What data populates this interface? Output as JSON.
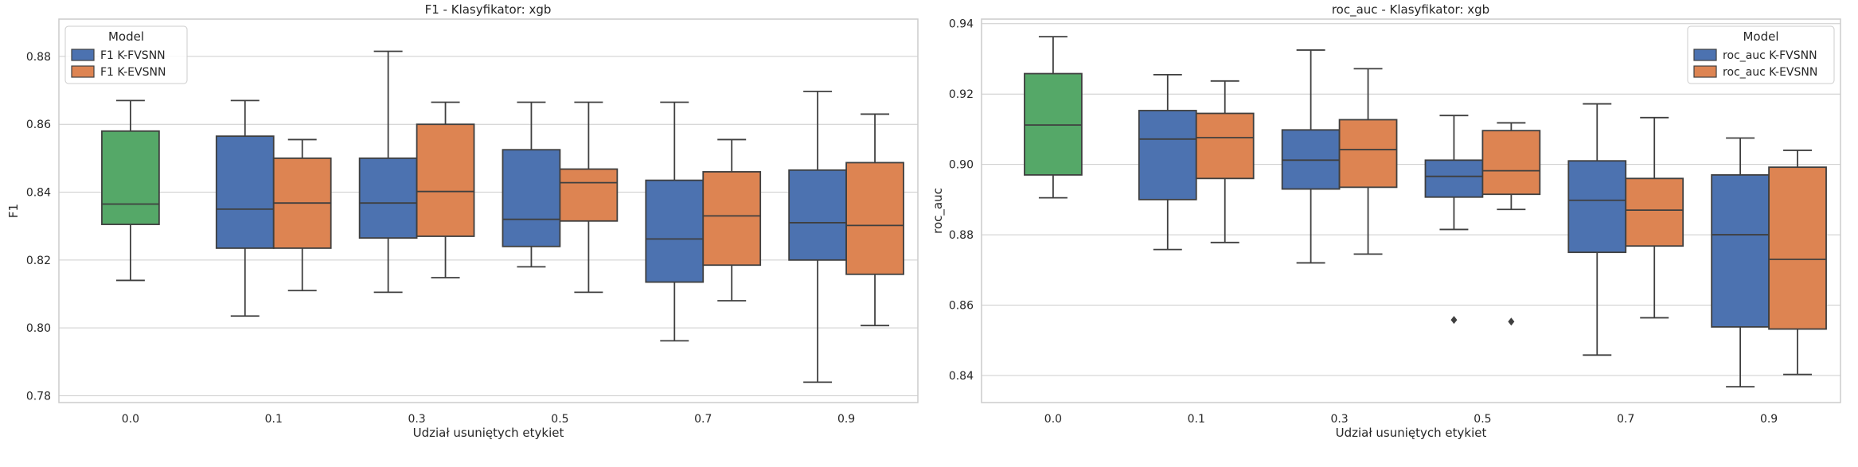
{
  "colors": {
    "baseline": "#55A868",
    "k_fvsnn": "#4C72B0",
    "k_evsnn": "#DD8452",
    "grid": "#CCCCCC",
    "line": "#3F3F3F",
    "frame": "#CCCCCC"
  },
  "chart_data": [
    {
      "type": "box",
      "title": "F1 - Klasyfikator: xgb",
      "xlabel": "Udział usuniętych etykiet",
      "ylabel": "F1",
      "ylim": [
        0.778,
        0.891
      ],
      "yticks": [
        "0.78",
        "0.80",
        "0.82",
        "0.84",
        "0.86",
        "0.88"
      ],
      "categories": [
        "0.0",
        "0.1",
        "0.3",
        "0.5",
        "0.7",
        "0.9"
      ],
      "grid": true,
      "legend": {
        "title": "Model",
        "placement": "top-left",
        "entries": [
          "F1 K-FVSNN",
          "F1 K-EVSNN"
        ]
      },
      "series": [
        {
          "name": "",
          "boxes": [
            {
              "category": "0.0",
              "whisker_low": 0.814,
              "q1": 0.8305,
              "median": 0.8365,
              "q3": 0.858,
              "whisker_high": 0.867
            }
          ]
        },
        {
          "name": "F1 K-FVSNN",
          "boxes": [
            {
              "category": "0.1",
              "whisker_low": 0.8035,
              "q1": 0.8235,
              "median": 0.835,
              "q3": 0.8565,
              "whisker_high": 0.867
            },
            {
              "category": "0.3",
              "whisker_low": 0.8105,
              "q1": 0.8265,
              "median": 0.8368,
              "q3": 0.85,
              "whisker_high": 0.8815
            },
            {
              "category": "0.5",
              "whisker_low": 0.818,
              "q1": 0.824,
              "median": 0.832,
              "q3": 0.8525,
              "whisker_high": 0.8665
            },
            {
              "category": "0.7",
              "whisker_low": 0.7962,
              "q1": 0.8135,
              "median": 0.8262,
              "q3": 0.8435,
              "whisker_high": 0.8665
            },
            {
              "category": "0.9",
              "whisker_low": 0.784,
              "q1": 0.82,
              "median": 0.831,
              "q3": 0.8465,
              "whisker_high": 0.8697
            }
          ]
        },
        {
          "name": "F1 K-EVSNN",
          "boxes": [
            {
              "category": "0.1",
              "whisker_low": 0.811,
              "q1": 0.8235,
              "median": 0.8368,
              "q3": 0.85,
              "whisker_high": 0.8555
            },
            {
              "category": "0.3",
              "whisker_low": 0.8148,
              "q1": 0.827,
              "median": 0.8402,
              "q3": 0.86,
              "whisker_high": 0.8665
            },
            {
              "category": "0.5",
              "whisker_low": 0.8105,
              "q1": 0.8315,
              "median": 0.8428,
              "q3": 0.8468,
              "whisker_high": 0.8665
            },
            {
              "category": "0.7",
              "whisker_low": 0.808,
              "q1": 0.8185,
              "median": 0.833,
              "q3": 0.846,
              "whisker_high": 0.8555
            },
            {
              "category": "0.9",
              "whisker_low": 0.8007,
              "q1": 0.8158,
              "median": 0.8302,
              "q3": 0.8487,
              "whisker_high": 0.863
            }
          ]
        }
      ]
    },
    {
      "type": "box",
      "title": "roc_auc - Klasyfikator: xgb",
      "xlabel": "Udział usuniętych etykiet",
      "ylabel": "roc_auc",
      "ylim": [
        0.8323,
        0.9413
      ],
      "yticks": [
        "0.84",
        "0.86",
        "0.88",
        "0.90",
        "0.92",
        "0.94"
      ],
      "categories": [
        "0.0",
        "0.1",
        "0.3",
        "0.5",
        "0.7",
        "0.9"
      ],
      "grid": true,
      "legend": {
        "title": "Model",
        "placement": "top-right",
        "entries": [
          "roc_auc K-FVSNN",
          "roc_auc K-EVSNN"
        ]
      },
      "series": [
        {
          "name": "",
          "boxes": [
            {
              "category": "0.0",
              "whisker_low": 0.8905,
              "q1": 0.897,
              "median": 0.9112,
              "q3": 0.9258,
              "whisker_high": 0.9363
            }
          ]
        },
        {
          "name": "roc_auc K-FVSNN",
          "boxes": [
            {
              "category": "0.1",
              "whisker_low": 0.8758,
              "q1": 0.89,
              "median": 0.9072,
              "q3": 0.9153,
              "whisker_high": 0.9255
            },
            {
              "category": "0.3",
              "whisker_low": 0.872,
              "q1": 0.893,
              "median": 0.9012,
              "q3": 0.9098,
              "whisker_high": 0.9325
            },
            {
              "category": "0.5",
              "whisker_low": 0.8815,
              "q1": 0.8907,
              "median": 0.8966,
              "q3": 0.9012,
              "whisker_high": 0.9139,
              "outliers": [
                0.8558
              ]
            },
            {
              "category": "0.7",
              "whisker_low": 0.8458,
              "q1": 0.875,
              "median": 0.8898,
              "q3": 0.901,
              "whisker_high": 0.9172
            },
            {
              "category": "0.9",
              "whisker_low": 0.8368,
              "q1": 0.8538,
              "median": 0.88,
              "q3": 0.897,
              "whisker_high": 0.9075
            }
          ]
        },
        {
          "name": "roc_auc K-EVSNN",
          "boxes": [
            {
              "category": "0.1",
              "whisker_low": 0.8778,
              "q1": 0.896,
              "median": 0.9076,
              "q3": 0.9145,
              "whisker_high": 0.9237
            },
            {
              "category": "0.3",
              "whisker_low": 0.8745,
              "q1": 0.8935,
              "median": 0.9042,
              "q3": 0.9127,
              "whisker_high": 0.9272
            },
            {
              "category": "0.5",
              "whisker_low": 0.8872,
              "q1": 0.8915,
              "median": 0.8982,
              "q3": 0.9096,
              "whisker_high": 0.9118,
              "outliers": [
                0.8553
              ]
            },
            {
              "category": "0.7",
              "whisker_low": 0.8564,
              "q1": 0.8768,
              "median": 0.887,
              "q3": 0.896,
              "whisker_high": 0.9133
            },
            {
              "category": "0.9",
              "whisker_low": 0.8403,
              "q1": 0.8532,
              "median": 0.873,
              "q3": 0.8992,
              "whisker_high": 0.904
            }
          ]
        }
      ]
    }
  ]
}
